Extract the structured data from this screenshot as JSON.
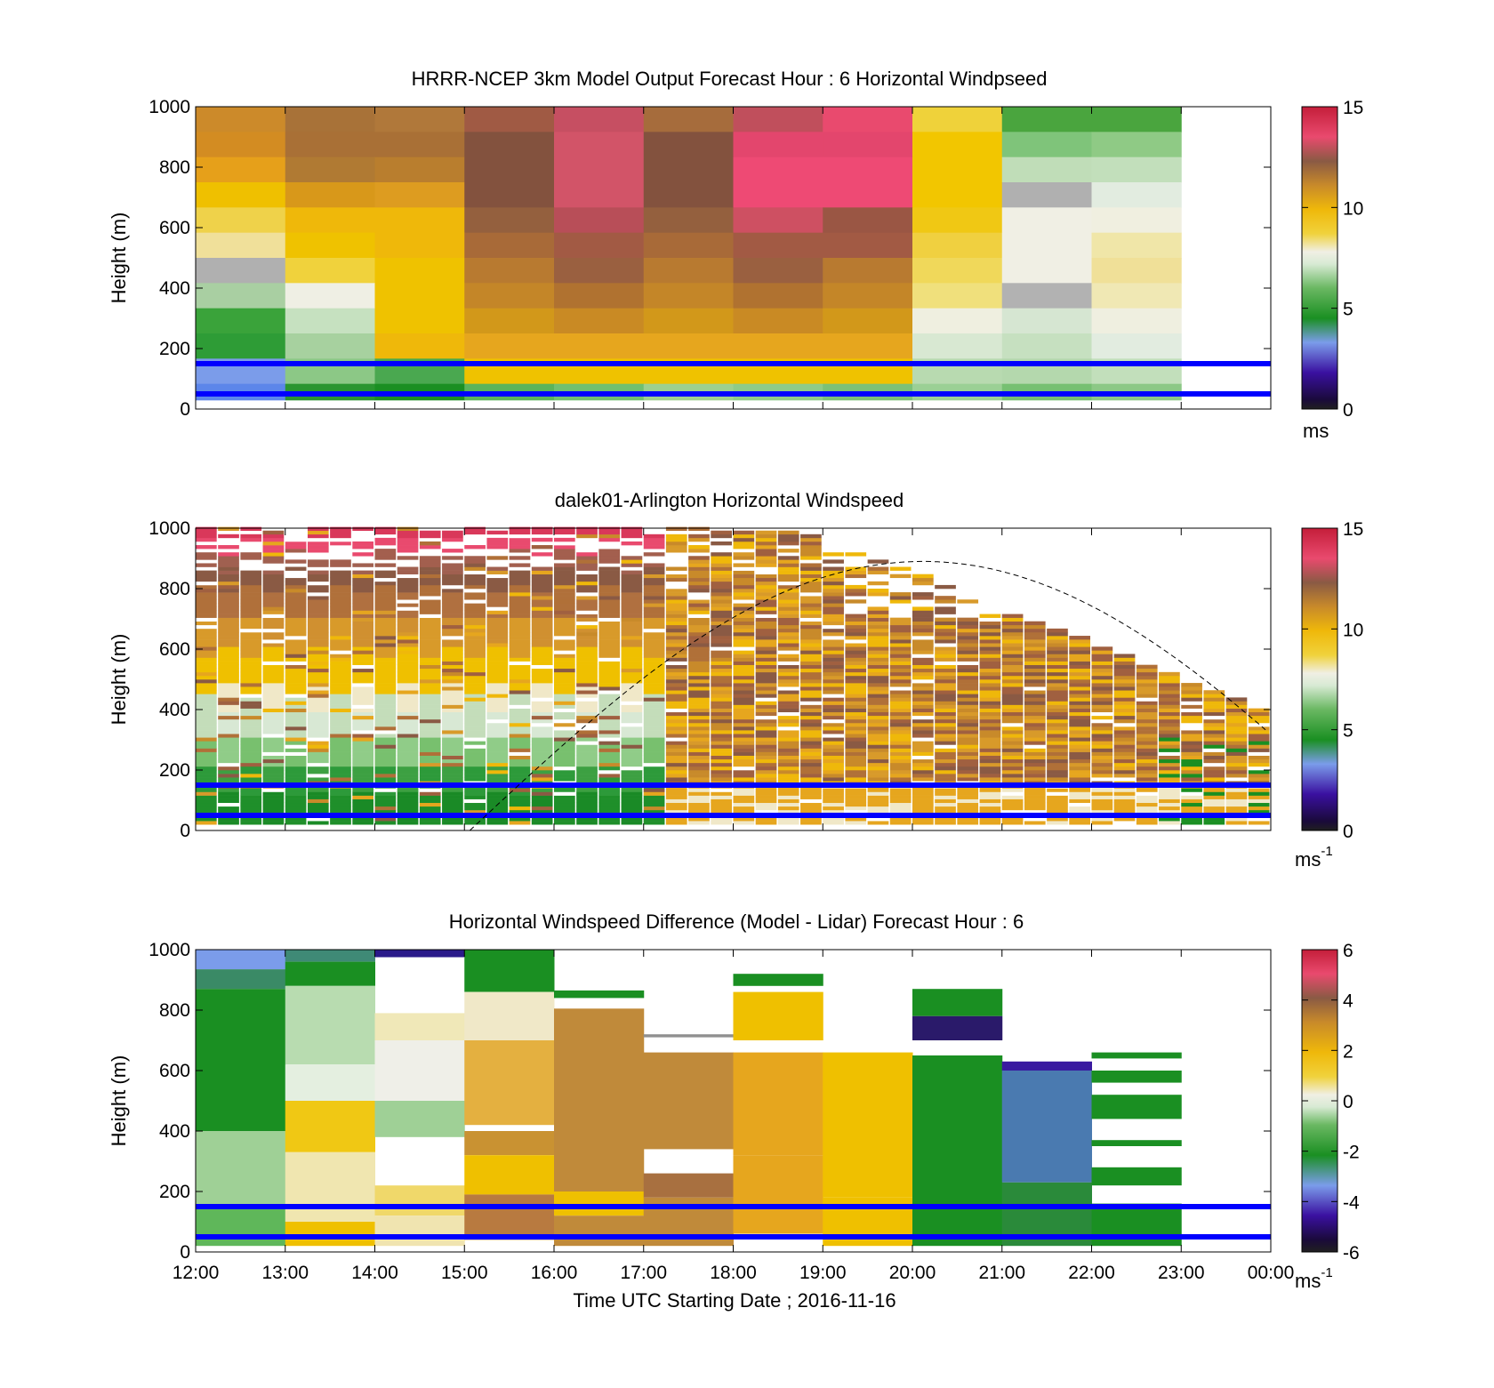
{
  "chart_data": [
    {
      "type": "heatmap",
      "title": "HRRR-NCEP 3km Model Output   Forecast Hour : 6 Horizontal Windpseed",
      "xlabel": "",
      "ylabel": "Height (m)",
      "x_range": [
        "12:00",
        "00:00"
      ],
      "y_range": [
        0,
        1000
      ],
      "y_ticks": [
        "0",
        "200",
        "400",
        "600",
        "800",
        "1000"
      ],
      "colorbar": {
        "min": 0,
        "max": 15,
        "ticks": [
          "0",
          "5",
          "10",
          "15"
        ],
        "unit": "ms",
        "unit_sup": ""
      },
      "reference_lines_m": [
        150,
        50
      ],
      "reference_line_color": "#0000ff",
      "cells": [
        [
          "#cc8a2a",
          "#a87238",
          "#b0783a",
          "#a05a44",
          "#c64f62",
          "#a66c3c",
          "#c04f5c",
          "#e94a6e",
          "#efd23a",
          "#4aa53e",
          "#4aa53e",
          null
        ],
        [
          "#d38c22",
          "#a97036",
          "#a97036",
          "#83523e",
          "#d25468",
          "#83523e",
          "#e3466d",
          "#e3466d",
          "#f2c600",
          "#7fc47a",
          "#8fca85",
          null
        ],
        [
          "#e6a01a",
          "#b07a33",
          "#b97e2e",
          "#83523e",
          "#d25468",
          "#83523e",
          "#ee4a74",
          "#ee4a74",
          "#f2c600",
          "#c0ddb8",
          "#c2dfbb",
          null
        ],
        [
          "#efc000",
          "#d8981a",
          "#dd9c20",
          "#83523e",
          "#d25468",
          "#83523e",
          "#ee4a74",
          "#ee4a74",
          "#f2c600",
          "#b0b0b0",
          "#e2ece0",
          null
        ],
        [
          "#efd24a",
          "#efb80a",
          "#efb80a",
          "#94603e",
          "#b84e58",
          "#94603e",
          "#ce5062",
          "#9a5644",
          "#f0c814",
          "#f0efe4",
          "#f0efe0",
          null
        ],
        [
          "#f0e09a",
          "#efc200",
          "#efb80a",
          "#a86a38",
          "#a25a44",
          "#a86a38",
          "#a25a44",
          "#a25a44",
          "#f0d040",
          "#f0efe4",
          "#f0e6a8",
          null
        ],
        [
          "#b0b0b0",
          "#f0d23c",
          "#efc200",
          "#b87a30",
          "#9a6040",
          "#b87a30",
          "#9a6040",
          "#b87a30",
          "#f0d85a",
          "#f0efe4",
          "#f0e098",
          null
        ],
        [
          "#a9cfa2",
          "#efefe4",
          "#efc200",
          "#c48628",
          "#b07230",
          "#c48628",
          "#b07230",
          "#c48628",
          "#f0e07c",
          "#b2b2b2",
          "#f0e8b4",
          null
        ],
        [
          "#3aa33a",
          "#c6e1c0",
          "#efc200",
          "#d2981a",
          "#c98a24",
          "#d2981a",
          "#c98a24",
          "#d2981a",
          "#efefe0",
          "#d6e6d2",
          "#efefe0",
          null
        ],
        [
          "#2e9c36",
          "#a7d19f",
          "#efb80a",
          "#e6a61e",
          "#e6a61e",
          "#e6a61e",
          "#e6a61e",
          "#e6a61e",
          "#d8e8d2",
          "#c6e0c0",
          "#e2ece0",
          null
        ],
        [
          "#7b9cea",
          "#8cc886",
          "#4aa850",
          "#efc200",
          "#efc200",
          "#efc200",
          "#efc200",
          "#efc200",
          "#b8dab0",
          "#b4d8ad",
          "#c2dfbb",
          null
        ],
        [
          "#5c86ea",
          "#2a9530",
          "#1a8f22",
          "#5ab45a",
          "#70c070",
          "#9dd08f",
          "#8ecb88",
          "#7bc177",
          "#9bd095",
          "#76c072",
          "#8cc886",
          null
        ]
      ]
    },
    {
      "type": "heatmap",
      "title": "dalek01-Arlington  Horizontal Windspeed",
      "xlabel": "",
      "ylabel": "Height (m)",
      "x_range": [
        "12:00",
        "00:00"
      ],
      "y_range": [
        0,
        1000
      ],
      "y_ticks": [
        "0",
        "200",
        "400",
        "600",
        "800",
        "1000"
      ],
      "colorbar": {
        "min": 0,
        "max": 15,
        "ticks": [
          "0",
          "5",
          "10",
          "15"
        ],
        "unit": "ms",
        "unit_sup": "-1"
      },
      "reference_lines_m": [
        150,
        50
      ],
      "reference_line_color": "#0000ff",
      "overlay": "dashed sine curve (solar elevation) from ~15:00 to 00:00, peak near 20:00 at ~890 m",
      "column_profiles": [
        {
          "tops": [
            1000,
            960,
            920,
            860,
            800,
            700,
            560,
            440,
            300,
            200,
            110,
            0
          ],
          "cols": [
            "#d9385a",
            "#e94a6e",
            "#a35f4e",
            "#8a5a44",
            "#b0703a",
            "#d89a2a",
            "#efc000",
            "#c4ddba",
            "#78c06e",
            "#2d9a3a",
            "#1f8f2a",
            "#5c6fd0"
          ]
        },
        {
          "tops": [
            1000,
            960,
            900,
            840,
            780,
            700,
            600,
            480,
            380,
            300,
            200,
            120,
            0
          ],
          "cols": [
            "#d9385a",
            "#e94a6e",
            "#a06050",
            "#8a5a44",
            "#b07040",
            "#d09030",
            "#efc000",
            "#f0e8c8",
            "#d8e8d4",
            "#90cc88",
            "#3da042",
            "#1a8a26",
            "#3050b0"
          ]
        }
      ]
    },
    {
      "type": "heatmap",
      "title": "Horizontal Windspeed Difference (Model - Lidar) Forecast Hour : 6",
      "xlabel": "Time UTC  Starting Date ; 2016-11-16",
      "ylabel": "Height (m)",
      "x_ticks": [
        "12:00",
        "13:00",
        "14:00",
        "15:00",
        "16:00",
        "17:00",
        "18:00",
        "19:00",
        "20:00",
        "21:00",
        "22:00",
        "23:00",
        "00:00"
      ],
      "y_range": [
        0,
        1000
      ],
      "y_ticks": [
        "0",
        "200",
        "400",
        "600",
        "800",
        "1000"
      ],
      "colorbar": {
        "min": -6,
        "max": 6,
        "ticks": [
          "-6",
          "-4",
          "-2",
          "0",
          "2",
          "4",
          "6"
        ],
        "unit": "ms",
        "unit_sup": "-1"
      },
      "reference_lines_m": [
        150,
        50
      ],
      "reference_line_color": "#0000ff",
      "columns": [
        {
          "segments": [
            [
              935,
              1000,
              "#7b9cea"
            ],
            [
              870,
              935,
              "#3a8a66"
            ],
            [
              400,
              870,
              "#1a8f22"
            ],
            [
              150,
              400,
              "#9fd096"
            ],
            [
              20,
              150,
              "#5fb75a"
            ]
          ]
        },
        {
          "segments": [
            [
              960,
              1000,
              "#3f8a76"
            ],
            [
              880,
              960,
              "#1a8f22"
            ],
            [
              620,
              880,
              "#b8dcb0"
            ],
            [
              500,
              620,
              "#e4efe0"
            ],
            [
              330,
              500,
              "#f0c814"
            ],
            [
              100,
              330,
              "#f0e6b0"
            ],
            [
              20,
              100,
              "#efc000"
            ]
          ]
        },
        {
          "segments": [
            [
              975,
              1000,
              "#2a1a8a"
            ],
            [
              700,
              790,
              "#f0e8b8"
            ],
            [
              500,
              700,
              "#efefe8"
            ],
            [
              380,
              500,
              "#9fd096"
            ],
            [
              120,
              220,
              "#f0d86a"
            ],
            [
              20,
              120,
              "#f0e4b0"
            ]
          ]
        },
        {
          "segments": [
            [
              860,
              1000,
              "#1a8f22"
            ],
            [
              700,
              860,
              "#f0e8c8"
            ],
            [
              420,
              700,
              "#e4b040"
            ],
            [
              320,
              400,
              "#c99232"
            ],
            [
              190,
              320,
              "#efc000"
            ],
            [
              40,
              190,
              "#b87a40"
            ]
          ]
        },
        {
          "segments": [
            [
              840,
              865,
              "#1a8f22"
            ],
            [
              200,
              805,
              "#c08a3a"
            ],
            [
              120,
              200,
              "#efc000"
            ],
            [
              20,
              120,
              "#c08a3a"
            ]
          ]
        },
        {
          "segments": [
            [
              710,
              720,
              "#909090"
            ],
            [
              340,
              660,
              "#c08a3a"
            ],
            [
              180,
              260,
              "#a87040"
            ],
            [
              20,
              180,
              "#c08a3a"
            ]
          ]
        },
        {
          "segments": [
            [
              880,
              920,
              "#1a8f22"
            ],
            [
              700,
              860,
              "#efc000"
            ],
            [
              320,
              660,
              "#e6a61e"
            ],
            [
              60,
              320,
              "#e6a61e"
            ]
          ]
        },
        {
          "segments": [
            [
              180,
              660,
              "#efc000"
            ],
            [
              20,
              180,
              "#efc000"
            ]
          ]
        },
        {
          "segments": [
            [
              780,
              870,
              "#1a8f22"
            ],
            [
              700,
              780,
              "#2a1a6a"
            ],
            [
              20,
              650,
              "#1a8f22"
            ]
          ]
        },
        {
          "segments": [
            [
              600,
              630,
              "#3a1aa0"
            ],
            [
              230,
              600,
              "#4a7ab0"
            ],
            [
              20,
              230,
              "#2a8a3a"
            ]
          ]
        },
        {
          "segments": [
            [
              640,
              660,
              "#1a8f22"
            ],
            [
              560,
              600,
              "#1a8f22"
            ],
            [
              440,
              520,
              "#1a8f22"
            ],
            [
              350,
              370,
              "#1a8f22"
            ],
            [
              220,
              280,
              "#1a8f22"
            ],
            [
              20,
              160,
              "#1a8f22"
            ]
          ]
        }
      ]
    }
  ]
}
